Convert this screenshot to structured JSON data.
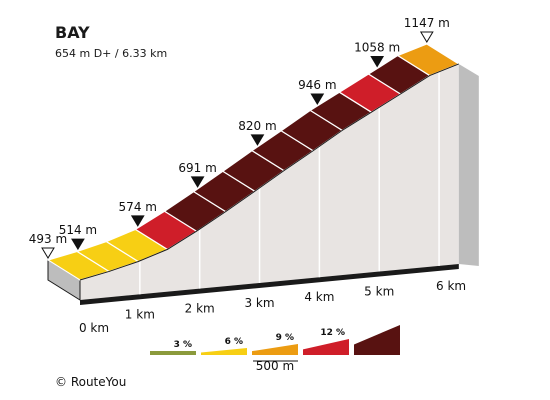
{
  "chart_data": {
    "type": "area",
    "title": "BAY",
    "subtitle": "654 m D+ / 6.33 km",
    "x_unit": "km",
    "y_unit": "m",
    "xlim": [
      0,
      6.33
    ],
    "segment_elevations": [
      493,
      514,
      540,
      574,
      630,
      691,
      755,
      820,
      882,
      946,
      1002,
      1058,
      1115,
      1147
    ],
    "segment_grades": [
      4,
      5,
      7,
      11,
      12,
      12,
      13,
      13,
      13,
      12,
      11,
      12,
      11
    ],
    "markers": [
      {
        "km": 0.0,
        "elevation": 493,
        "label": "493 m",
        "open": true
      },
      {
        "km": 0.5,
        "elevation": 514,
        "label": "514 m",
        "open": false
      },
      {
        "km": 1.5,
        "elevation": 574,
        "label": "574 m",
        "open": false
      },
      {
        "km": 2.5,
        "elevation": 691,
        "label": "691 m",
        "open": false
      },
      {
        "km": 3.5,
        "elevation": 820,
        "label": "820 m",
        "open": false
      },
      {
        "km": 4.5,
        "elevation": 946,
        "label": "946 m",
        "open": false
      },
      {
        "km": 5.5,
        "elevation": 1058,
        "label": "1058 m",
        "open": false
      },
      {
        "km": 6.33,
        "elevation": 1147,
        "label": "1147 m",
        "open": true
      }
    ],
    "x_ticks": [
      {
        "km": 0,
        "label": "0 km"
      },
      {
        "km": 1,
        "label": "1 km"
      },
      {
        "km": 2,
        "label": "2 km"
      },
      {
        "km": 3,
        "label": "3 km"
      },
      {
        "km": 4,
        "label": "4 km"
      },
      {
        "km": 5,
        "label": "5 km"
      },
      {
        "km": 6,
        "label": "6 km"
      }
    ],
    "legend": [
      {
        "grade": 3,
        "label": "3 %",
        "color": "#8b9a3c"
      },
      {
        "grade": 6,
        "label": "6 %",
        "color": "#f7cf14"
      },
      {
        "grade": 9,
        "label": "9 %",
        "color": "#ec9c12"
      },
      {
        "grade": 12,
        "label": "12 %",
        "color": "#cf1e29"
      },
      {
        "grade": 15,
        "label": "",
        "color": "#581211"
      }
    ],
    "scale_label": "500 m"
  },
  "colors": {
    "grade_bands": [
      "#8b9a3c",
      "#f7cf14",
      "#ec9c12",
      "#cf1e29",
      "#581211"
    ],
    "front_face": "#e8e4e2",
    "side_face": "#bdbdbd",
    "outline": "#1a1a1a"
  },
  "credit": "© RouteYou"
}
